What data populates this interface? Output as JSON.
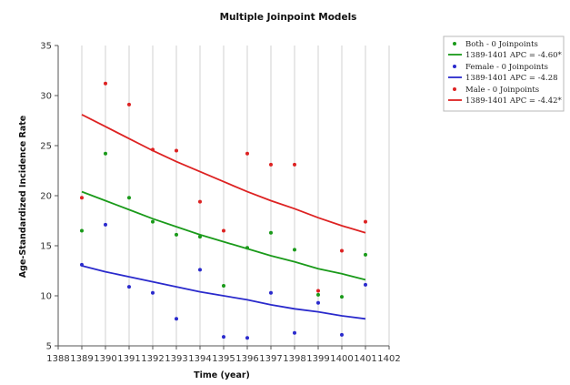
{
  "chart_data": {
    "type": "scatter",
    "title": "Multiple Joinpoint Models",
    "xlabel": "Time (year)",
    "ylabel": "Age-Standardized Incidence Rate",
    "xlim": [
      1388,
      1402
    ],
    "ylim": [
      5,
      35
    ],
    "x_ticks": [
      1388,
      1389,
      1390,
      1391,
      1392,
      1393,
      1394,
      1395,
      1396,
      1397,
      1398,
      1399,
      1400,
      1401,
      1402
    ],
    "y_ticks": [
      5,
      10,
      15,
      20,
      25,
      30,
      35
    ],
    "grid": "vertical",
    "legend_position": "top-right",
    "x": [
      1389,
      1390,
      1391,
      1392,
      1393,
      1394,
      1395,
      1396,
      1397,
      1398,
      1399,
      1400,
      1401
    ],
    "series": [
      {
        "name": "Both - 0 Joinpoints",
        "fit_label": "1389-1401 APC = -4.60*",
        "color": "#1a9a1a",
        "observed": [
          16.5,
          24.2,
          19.8,
          17.4,
          16.1,
          15.9,
          11.0,
          14.8,
          16.3,
          14.6,
          10.1,
          9.9,
          14.1
        ],
        "fitted": [
          20.4,
          19.5,
          18.6,
          17.7,
          16.9,
          16.1,
          15.4,
          14.7,
          14.0,
          13.4,
          12.7,
          12.2,
          11.6
        ]
      },
      {
        "name": "Female - 0 Joinpoints",
        "fit_label": "1389-1401 APC = -4.28",
        "color": "#2a2acc",
        "observed": [
          13.1,
          17.1,
          10.9,
          10.3,
          7.7,
          12.6,
          5.9,
          5.8,
          10.3,
          6.3,
          9.3,
          6.1,
          11.1
        ],
        "fitted": [
          13.0,
          12.4,
          11.9,
          11.4,
          10.9,
          10.4,
          10.0,
          9.6,
          9.1,
          8.7,
          8.4,
          8.0,
          7.7
        ]
      },
      {
        "name": "Male - 0 Joinpoints",
        "fit_label": "1389-1401 APC = -4.42*",
        "color": "#dd2222",
        "observed": [
          19.8,
          31.2,
          29.1,
          24.6,
          24.5,
          19.4,
          16.5,
          24.2,
          23.1,
          23.1,
          10.5,
          14.5,
          17.4
        ],
        "fitted": [
          28.1,
          26.9,
          25.7,
          24.5,
          23.4,
          22.4,
          21.4,
          20.4,
          19.5,
          18.7,
          17.8,
          17.0,
          16.3
        ]
      }
    ]
  }
}
